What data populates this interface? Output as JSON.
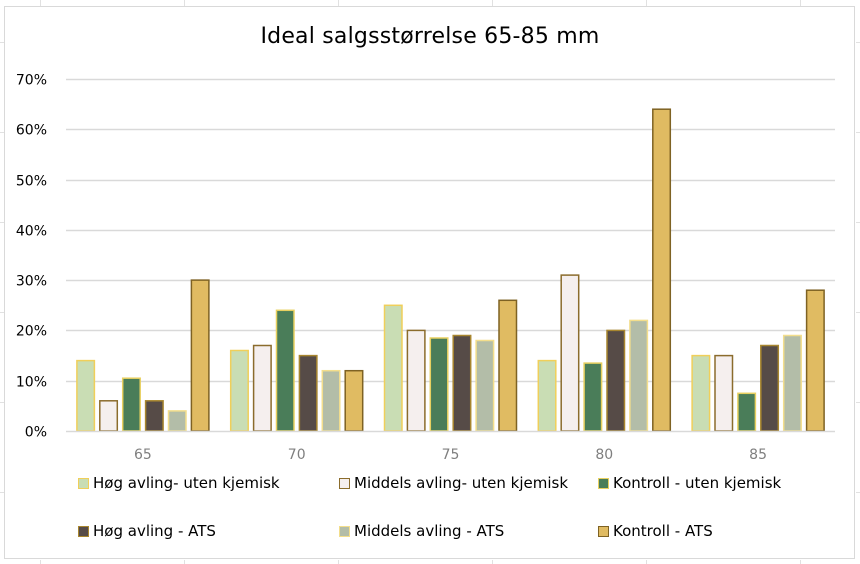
{
  "chart_data": {
    "type": "bar",
    "title": "Ideal salgsstørrelse 65-85 mm",
    "xlabel": "",
    "ylabel": "",
    "categories": [
      "65",
      "70",
      "75",
      "80",
      "85"
    ],
    "ylim": [
      0,
      0.7
    ],
    "yticks": [
      "0%",
      "10%",
      "20%",
      "30%",
      "40%",
      "50%",
      "60%",
      "70%"
    ],
    "grid": true,
    "legend_position": "bottom",
    "series": [
      {
        "name": "Høg avling- uten kjemisk",
        "values": [
          0.14,
          0.16,
          0.25,
          0.14,
          0.15
        ],
        "fill": "#c9ddb4",
        "stroke": "#f0cf5a"
      },
      {
        "name": "Middels avling- uten kjemisk",
        "values": [
          0.06,
          0.17,
          0.2,
          0.31,
          0.15
        ],
        "fill": "#f5efee",
        "stroke": "#8b6c2c"
      },
      {
        "name": "Kontroll - uten kjemisk",
        "values": [
          0.105,
          0.24,
          0.185,
          0.135,
          0.075
        ],
        "fill": "#4a7d59",
        "stroke": "#e8d060"
      },
      {
        "name": "Høg avling - ATS",
        "values": [
          0.06,
          0.15,
          0.19,
          0.2,
          0.17
        ],
        "fill": "#564b47",
        "stroke": "#a8862f"
      },
      {
        "name": "Middels avling - ATS",
        "values": [
          0.04,
          0.12,
          0.18,
          0.22,
          0.19
        ],
        "fill": "#b3bda8",
        "stroke": "#f3de8c"
      },
      {
        "name": "Kontroll - ATS",
        "values": [
          0.3,
          0.12,
          0.26,
          0.64,
          0.28
        ],
        "fill": "#e0bb62",
        "stroke": "#7e6223"
      }
    ]
  }
}
